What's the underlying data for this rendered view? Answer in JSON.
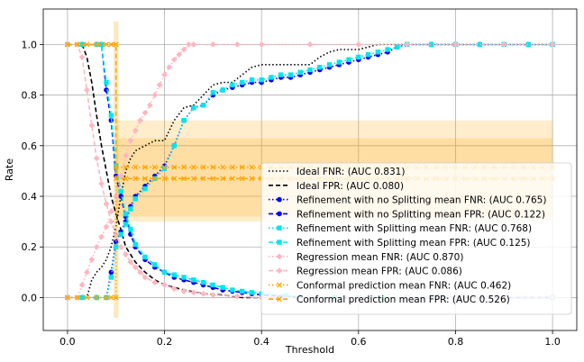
{
  "chart_data": {
    "type": "line",
    "title": "",
    "xlabel": "Threshold",
    "ylabel": "Rate",
    "xlim": [
      -0.05,
      1.05
    ],
    "ylim": [
      -0.13,
      1.14
    ],
    "xticks": [
      0.0,
      0.2,
      0.4,
      0.6,
      0.8,
      1.0
    ],
    "xtick_labels": [
      "0.0",
      "0.2",
      "0.4",
      "0.6",
      "0.8",
      "1.0"
    ],
    "yticks": [
      0.0,
      0.2,
      0.4,
      0.6,
      0.8,
      1.0
    ],
    "ytick_labels": [
      "0.0",
      "0.2",
      "0.4",
      "0.6",
      "0.8",
      "1.0"
    ],
    "grid": true,
    "legend_position": "lower-right",
    "series": [
      {
        "name": "Ideal FNR: (AUC 0.831)",
        "color": "#000000",
        "style": "dotted",
        "marker": "none",
        "x": [
          0.0,
          0.04,
          0.05,
          0.06,
          0.07,
          0.08,
          0.09,
          0.1,
          0.11,
          0.12,
          0.13,
          0.14,
          0.16,
          0.18,
          0.2,
          0.22,
          0.24,
          0.26,
          0.28,
          0.3,
          0.32,
          0.34,
          0.36,
          0.38,
          0.4,
          0.42,
          0.44,
          0.46,
          0.48,
          0.5,
          0.52,
          0.54,
          0.56,
          0.58,
          0.6,
          0.62,
          0.64,
          0.66,
          0.68,
          1.0
        ],
        "y": [
          0.0,
          0.0,
          0.07,
          0.1,
          0.12,
          0.15,
          0.2,
          0.28,
          0.4,
          0.5,
          0.55,
          0.58,
          0.6,
          0.62,
          0.62,
          0.7,
          0.75,
          0.76,
          0.8,
          0.84,
          0.85,
          0.85,
          0.88,
          0.91,
          0.92,
          0.92,
          0.92,
          0.92,
          0.92,
          0.92,
          0.95,
          0.97,
          0.98,
          0.98,
          0.98,
          0.99,
          1.0,
          1.0,
          1.0,
          1.0
        ]
      },
      {
        "name": "Ideal FPR: (AUC 0.080)",
        "color": "#000000",
        "style": "dashed",
        "marker": "none",
        "x": [
          0.0,
          0.03,
          0.04,
          0.05,
          0.06,
          0.07,
          0.08,
          0.09,
          0.1,
          0.11,
          0.12,
          0.14,
          0.16,
          0.18,
          0.2,
          0.24,
          0.28,
          0.32,
          0.36,
          0.4,
          0.45,
          0.5,
          0.55,
          0.6,
          0.65,
          0.7,
          1.0
        ],
        "y": [
          1.0,
          1.0,
          0.95,
          0.85,
          0.72,
          0.6,
          0.5,
          0.4,
          0.33,
          0.27,
          0.2,
          0.14,
          0.1,
          0.07,
          0.05,
          0.03,
          0.015,
          0.01,
          0.0,
          0.0,
          0.0,
          0.0,
          0.0,
          0.0,
          0.0,
          0.0,
          0.0
        ]
      },
      {
        "name": "Refinement with no Splitting mean FNR: (AUC 0.765)",
        "color": "#0000ff",
        "style": "dotted",
        "marker": "circle",
        "x": [
          0.0,
          0.03,
          0.06,
          0.08,
          0.09,
          0.1,
          0.11,
          0.12,
          0.13,
          0.14,
          0.16,
          0.18,
          0.2,
          0.22,
          0.24,
          0.26,
          0.28,
          0.3,
          0.32,
          0.34,
          0.36,
          0.38,
          0.4,
          0.42,
          0.44,
          0.46,
          0.48,
          0.5,
          0.52,
          0.54,
          0.56,
          0.58,
          0.6,
          0.62,
          0.64,
          0.66,
          0.68,
          0.7,
          0.75,
          0.8,
          0.85,
          0.9,
          0.95,
          1.0
        ],
        "y": [
          0.0,
          0.0,
          0.0,
          0.0,
          0.1,
          0.22,
          0.26,
          0.3,
          0.36,
          0.4,
          0.44,
          0.48,
          0.52,
          0.6,
          0.7,
          0.75,
          0.76,
          0.8,
          0.82,
          0.83,
          0.84,
          0.85,
          0.85,
          0.86,
          0.87,
          0.87,
          0.88,
          0.89,
          0.9,
          0.91,
          0.92,
          0.93,
          0.94,
          0.95,
          0.96,
          0.97,
          0.99,
          1.0,
          1.0,
          1.0,
          1.0,
          1.0,
          1.0,
          1.0
        ]
      },
      {
        "name": "Refinement with no Splitting mean FPR: (AUC 0.122)",
        "color": "#0000ff",
        "style": "dashed",
        "marker": "circle",
        "x": [
          0.0,
          0.03,
          0.06,
          0.07,
          0.08,
          0.09,
          0.1,
          0.11,
          0.12,
          0.13,
          0.14,
          0.16,
          0.18,
          0.2,
          0.22,
          0.24,
          0.26,
          0.28,
          0.3,
          0.32,
          0.34,
          0.36,
          0.38,
          0.4,
          0.45,
          0.5,
          0.55,
          0.6,
          0.65,
          0.7,
          0.8,
          0.9,
          1.0
        ],
        "y": [
          1.0,
          1.0,
          1.0,
          1.0,
          0.82,
          0.7,
          0.48,
          0.4,
          0.32,
          0.25,
          0.2,
          0.15,
          0.12,
          0.1,
          0.08,
          0.07,
          0.06,
          0.05,
          0.04,
          0.03,
          0.025,
          0.02,
          0.015,
          0.01,
          0.005,
          0.0,
          0.0,
          0.0,
          0.0,
          0.0,
          0.0,
          0.0,
          0.0
        ]
      },
      {
        "name": "Refinement with Splitting mean FNR: (AUC 0.768)",
        "color": "#00e5ee",
        "style": "dotted",
        "marker": "square",
        "x": [
          0.0,
          0.03,
          0.06,
          0.08,
          0.09,
          0.1,
          0.11,
          0.12,
          0.13,
          0.14,
          0.16,
          0.18,
          0.2,
          0.22,
          0.24,
          0.26,
          0.28,
          0.3,
          0.32,
          0.34,
          0.36,
          0.38,
          0.4,
          0.42,
          0.44,
          0.46,
          0.48,
          0.5,
          0.52,
          0.54,
          0.56,
          0.58,
          0.6,
          0.62,
          0.64,
          0.66,
          0.68,
          0.7,
          0.75,
          0.8,
          0.85,
          0.9,
          0.95,
          1.0
        ],
        "y": [
          0.0,
          0.0,
          0.0,
          0.0,
          0.08,
          0.2,
          0.25,
          0.29,
          0.35,
          0.39,
          0.43,
          0.47,
          0.51,
          0.6,
          0.7,
          0.75,
          0.76,
          0.81,
          0.82,
          0.84,
          0.85,
          0.86,
          0.86,
          0.87,
          0.88,
          0.88,
          0.89,
          0.9,
          0.91,
          0.92,
          0.93,
          0.94,
          0.95,
          0.96,
          0.97,
          0.98,
          0.99,
          1.0,
          1.0,
          1.0,
          1.0,
          1.0,
          1.0,
          1.0
        ]
      },
      {
        "name": "Refinement with Splitting mean FPR: (AUC 0.125)",
        "color": "#00e5ee",
        "style": "dashed",
        "marker": "square",
        "x": [
          0.0,
          0.03,
          0.06,
          0.07,
          0.08,
          0.09,
          0.1,
          0.11,
          0.12,
          0.13,
          0.14,
          0.16,
          0.18,
          0.2,
          0.22,
          0.24,
          0.26,
          0.28,
          0.3,
          0.32,
          0.34,
          0.36,
          0.38,
          0.4,
          0.45,
          0.5,
          0.55,
          0.6,
          0.65,
          0.7,
          0.8,
          0.9,
          1.0
        ],
        "y": [
          1.0,
          1.0,
          1.0,
          1.0,
          0.85,
          0.72,
          0.52,
          0.42,
          0.33,
          0.27,
          0.21,
          0.16,
          0.13,
          0.1,
          0.09,
          0.08,
          0.07,
          0.06,
          0.05,
          0.04,
          0.03,
          0.025,
          0.02,
          0.015,
          0.008,
          0.0,
          0.0,
          0.0,
          0.0,
          0.0,
          0.0,
          0.0,
          0.0
        ]
      },
      {
        "name": "Regression mean FNR: (AUC 0.870)",
        "color": "#ffb6c1",
        "style": "dotted",
        "marker": "diamond",
        "x": [
          0.0,
          0.02,
          0.03,
          0.04,
          0.05,
          0.06,
          0.07,
          0.08,
          0.09,
          0.1,
          0.11,
          0.12,
          0.13,
          0.14,
          0.15,
          0.16,
          0.17,
          0.18,
          0.19,
          0.2,
          0.21,
          0.22,
          0.23,
          0.24,
          0.25,
          0.26,
          0.3,
          0.35,
          0.4,
          0.5,
          0.6,
          0.7,
          0.8,
          0.9,
          1.0
        ],
        "y": [
          0.0,
          0.0,
          0.05,
          0.1,
          0.15,
          0.2,
          0.24,
          0.28,
          0.34,
          0.4,
          0.48,
          0.56,
          0.62,
          0.66,
          0.7,
          0.73,
          0.76,
          0.8,
          0.84,
          0.88,
          0.91,
          0.94,
          0.96,
          0.98,
          1.0,
          1.0,
          1.0,
          1.0,
          1.0,
          1.0,
          1.0,
          1.0,
          1.0,
          1.0,
          1.0
        ]
      },
      {
        "name": "Regression mean FPR: (AUC 0.086)",
        "color": "#ffb6c1",
        "style": "dashed",
        "marker": "diamond",
        "x": [
          0.0,
          0.02,
          0.03,
          0.04,
          0.05,
          0.06,
          0.07,
          0.08,
          0.09,
          0.1,
          0.11,
          0.12,
          0.13,
          0.14,
          0.15,
          0.16,
          0.18,
          0.2,
          0.22,
          0.24,
          0.26,
          0.28,
          0.3,
          0.35,
          0.4,
          0.5,
          0.6,
          0.7,
          0.8,
          0.9,
          1.0
        ],
        "y": [
          1.0,
          1.0,
          0.95,
          0.82,
          0.68,
          0.55,
          0.45,
          0.37,
          0.3,
          0.25,
          0.2,
          0.17,
          0.14,
          0.12,
          0.1,
          0.08,
          0.06,
          0.05,
          0.035,
          0.025,
          0.02,
          0.015,
          0.01,
          0.005,
          0.0,
          0.0,
          0.0,
          0.0,
          0.0,
          0.0,
          0.0
        ]
      },
      {
        "name": "Conformal prediction mean FNR: (AUC 0.462)",
        "color": "#ffa500",
        "style": "dotted",
        "marker": "x",
        "x": [
          0.0,
          0.02,
          0.04,
          0.06,
          0.08,
          0.09,
          0.1,
          0.1,
          0.12,
          0.14,
          0.16,
          0.18,
          0.2,
          0.22,
          0.24,
          0.26,
          0.28,
          0.3,
          0.32,
          0.34,
          0.36,
          0.38,
          0.4,
          0.42,
          0.44,
          0.46,
          0.48,
          0.5,
          0.52,
          0.54,
          0.56,
          0.58,
          0.6,
          0.62,
          0.64,
          0.66,
          0.68,
          0.7,
          0.72,
          0.74,
          0.76,
          0.78,
          0.8,
          0.82,
          0.84,
          0.86,
          0.88,
          0.9,
          0.92,
          0.94,
          0.96,
          0.98,
          1.0
        ],
        "y": [
          0.0,
          0.0,
          0.0,
          0.0,
          0.0,
          0.0,
          0.0,
          0.515,
          0.515,
          0.515,
          0.515,
          0.515,
          0.515,
          0.515,
          0.515,
          0.515,
          0.515,
          0.515,
          0.515,
          0.515,
          0.515,
          0.515,
          0.515,
          0.515,
          0.515,
          0.515,
          0.515,
          0.515,
          0.515,
          0.515,
          0.515,
          0.515,
          0.515,
          0.515,
          0.515,
          0.515,
          0.515,
          0.515,
          0.515,
          0.515,
          0.515,
          0.515,
          0.515,
          0.515,
          0.515,
          0.515,
          0.515,
          0.515,
          0.515,
          0.515,
          0.515,
          0.515,
          0.515
        ]
      },
      {
        "name": "Conformal prediction mean FPR: (AUC 0.526)",
        "color": "#ffa500",
        "style": "dashed",
        "marker": "x",
        "x": [
          0.0,
          0.02,
          0.04,
          0.06,
          0.08,
          0.09,
          0.1,
          0.1,
          0.12,
          0.14,
          0.16,
          0.18,
          0.2,
          0.22,
          0.24,
          0.26,
          0.28,
          0.3,
          0.32,
          0.34,
          0.36,
          0.38,
          0.4,
          0.42,
          0.44,
          0.46,
          0.48,
          0.5,
          0.52,
          0.54,
          0.56,
          0.58,
          0.6,
          0.62,
          0.64,
          0.66,
          0.68,
          0.7,
          0.72,
          0.74,
          0.76,
          0.78,
          0.8,
          0.82,
          0.84,
          0.86,
          0.88,
          0.9,
          0.92,
          0.94,
          0.96,
          0.98,
          1.0
        ],
        "y": [
          1.0,
          1.0,
          1.0,
          1.0,
          1.0,
          1.0,
          1.0,
          0.47,
          0.47,
          0.47,
          0.47,
          0.47,
          0.47,
          0.47,
          0.47,
          0.47,
          0.47,
          0.47,
          0.47,
          0.47,
          0.47,
          0.47,
          0.47,
          0.47,
          0.47,
          0.47,
          0.47,
          0.47,
          0.47,
          0.47,
          0.47,
          0.47,
          0.47,
          0.47,
          0.47,
          0.47,
          0.47,
          0.47,
          0.47,
          0.47,
          0.47,
          0.47,
          0.47,
          0.47,
          0.47,
          0.47,
          0.47,
          0.47,
          0.47,
          0.47,
          0.47,
          0.47,
          0.47
        ]
      }
    ],
    "bands": [
      {
        "series": "Conformal prediction mean FNR: (AUC 0.462)",
        "color": "#ffa500",
        "opacity": 0.2,
        "x_range": [
          0.1,
          1.0
        ],
        "y_range": [
          0.32,
          0.7
        ]
      },
      {
        "series": "Conformal prediction mean FPR: (AUC 0.526)",
        "color": "#ffa500",
        "opacity": 0.2,
        "x_range": [
          0.1,
          1.0
        ],
        "y_range": [
          0.3,
          0.63
        ]
      },
      {
        "series": "Conformal prediction vertical spread",
        "color": "#ffa500",
        "opacity": 0.25,
        "x_range": [
          0.095,
          0.105
        ],
        "y_range": [
          -0.08,
          1.09
        ]
      }
    ]
  }
}
